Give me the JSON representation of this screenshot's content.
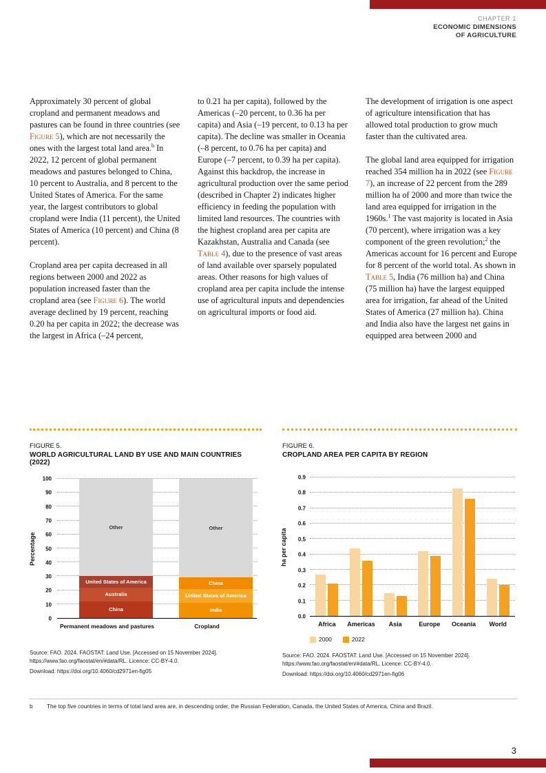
{
  "colors": {
    "accent_red": "#9e1a1d",
    "dotted_rule_orange": "#e8a33d",
    "reference_orange": "#c4581c"
  },
  "header": {
    "chapter": "CHAPTER 1",
    "title_line1": "ECONOMIC DIMENSIONS",
    "title_line2": "OF AGRICULTURE"
  },
  "body": {
    "col1": {
      "p1": [
        "Approximately 30 percent of global cropland and permanent meadows and pastures can be found in three countries (see ",
        "Figure 5",
        "), which are not necessarily the ones with the largest total land area.",
        "b",
        " In 2022, 12 percent of global permanent meadows and pastures belonged to China, 10 percent to Australia, and 8 percent to the United States of America. For the same year, the largest contributors to global cropland were India (11 percent), the United States of America (10 percent) and China (8 percent)."
      ],
      "p2": [
        "Cropland area per capita decreased in all regions between 2000 and 2022 as population increased faster than the cropland area (see ",
        "Figure 6",
        "). The world average declined by 19 percent, reaching 0.20 ha per capita in 2022; the decrease was the largest in Africa (–24 percent,"
      ]
    },
    "col2": {
      "p1": [
        "to 0.21 ha per capita), followed by the Americas (–20 percent, to 0.36 ha per capita) and Asia (–19 percent, to 0.13 ha per capita). The decline was smaller in Oceania (–8 percent, to 0.76 ha per capita) and Europe (–7 percent, to 0.39 ha per capita). Against this backdrop, the increase in agricultural production over the same period (described in Chapter 2) indicates higher efficiency in feeding the population with limited land resources. The countries with the highest cropland area per capita are Kazakhstan, Australia and Canada (see ",
        "Table 4",
        "), due to the presence of vast areas of land available over sparsely populated areas. Other reasons for high values of cropland area per capita include the intense use of agricultural inputs and dependencies on agricultural imports or food aid."
      ]
    },
    "col3": {
      "p1": "The development of irrigation is one aspect of agriculture intensification that has allowed total production to grow much faster than the cultivated area.",
      "p2": [
        "The global land area equipped for irrigation reached 354 million ha in 2022 (see ",
        "Figure 7",
        "), an increase of 22 percent from the 289 million ha of 2000 and more than twice the land area equipped for irrigation in the 1960s.",
        "1",
        " The vast majority is located in Asia (70 percent), where irrigation was a key component of the green revolution;",
        "2",
        " the Americas account for 16 percent and Europe for 8 percent of the world total. As shown in ",
        "Table 5",
        ", India (76 million ha) and China (75 million ha) have the largest equipped area for irrigation, far ahead of the United States of America (27 million ha). China and India also have the largest net gains in equipped area between 2000 and"
      ]
    }
  },
  "chart_data": [
    {
      "type": "bar",
      "subtype": "stacked",
      "figure_label": "FIGURE 5.",
      "title": "WORLD AGRICULTURAL LAND BY USE AND MAIN COUNTRIES (2022)",
      "ylabel": "Percentage",
      "ylim": [
        0,
        100
      ],
      "yticks": [
        0,
        10,
        20,
        30,
        40,
        50,
        60,
        70,
        80,
        90,
        100
      ],
      "grid": "dotted-horizontal",
      "categories": [
        "Permanent meadows and pastures",
        "Cropland"
      ],
      "bars": [
        {
          "category": "Permanent meadows and pastures",
          "segments_bottom_to_top": [
            {
              "label": "China",
              "value": 12,
              "color": "#b5371c",
              "text_color": "#ffffff"
            },
            {
              "label": "Australia",
              "value": 10,
              "color": "#c44f2e",
              "text_color": "#ffffff"
            },
            {
              "label": "United States of America",
              "value": 8,
              "color": "#a9402e",
              "text_color": "#ffffff"
            },
            {
              "label": "Other",
              "value": 70,
              "color": "#d9d9d9",
              "text_color": "#333333"
            }
          ]
        },
        {
          "category": "Cropland",
          "segments_bottom_to_top": [
            {
              "label": "India",
              "value": 11,
              "color": "#f29200",
              "text_color": "#ffffff"
            },
            {
              "label": "United States of America",
              "value": 10,
              "color": "#f9a825",
              "text_color": "#ffffff"
            },
            {
              "label": "China",
              "value": 8,
              "color": "#f18a00",
              "text_color": "#ffffff"
            },
            {
              "label": "Other",
              "value": 71,
              "color": "#d9d9d9",
              "text_color": "#333333"
            }
          ]
        }
      ]
    },
    {
      "type": "bar",
      "subtype": "grouped",
      "figure_label": "FIGURE 6.",
      "title": "CROPLAND AREA PER CAPITA BY REGION",
      "ylabel": "ha per capita",
      "ylim": [
        0,
        0.9
      ],
      "yticks": [
        0,
        0.1,
        0.2,
        0.3,
        0.4,
        0.5,
        0.6,
        0.7,
        0.8,
        0.9
      ],
      "grid": "dotted-horizontal",
      "legend_position": "bottom",
      "categories": [
        "Africa",
        "Americas",
        "Asia",
        "Europe",
        "Oceania",
        "World"
      ],
      "series": [
        {
          "name": "2000",
          "color": "#f9d69f",
          "values": [
            0.27,
            0.44,
            0.15,
            0.42,
            0.83,
            0.24
          ]
        },
        {
          "name": "2022",
          "color": "#f5a01e",
          "values": [
            0.21,
            0.36,
            0.13,
            0.39,
            0.76,
            0.2
          ]
        }
      ]
    }
  ],
  "figures": {
    "fig5": {
      "source_lines": [
        "Source: FAO. 2024. FAOSTAT: Land Use. [Accessed on 15 November 2024].",
        "https://www.fao.org/faostat/en/#data/RL. Licence: CC-BY-4.0.",
        "Download: https://doi.org/10.4060/cd2971en-fig05"
      ]
    },
    "fig6": {
      "source_lines": [
        "Source: FAO. 2024. FAOSTAT: Land Use. [Accessed on 15 November 2024].",
        "https://www.fao.org/faostat/en/#data/RL. Licence: CC-BY-4.0.",
        "Download: https://doi.org/10.4060/cd2971en-fig06"
      ]
    }
  },
  "footnote": {
    "marker": "b",
    "text": "The top five countries in terms of total land area are, in descending order, the Russian Federation, Canada, the United States of America, China and Brazil."
  },
  "page_number": "3"
}
